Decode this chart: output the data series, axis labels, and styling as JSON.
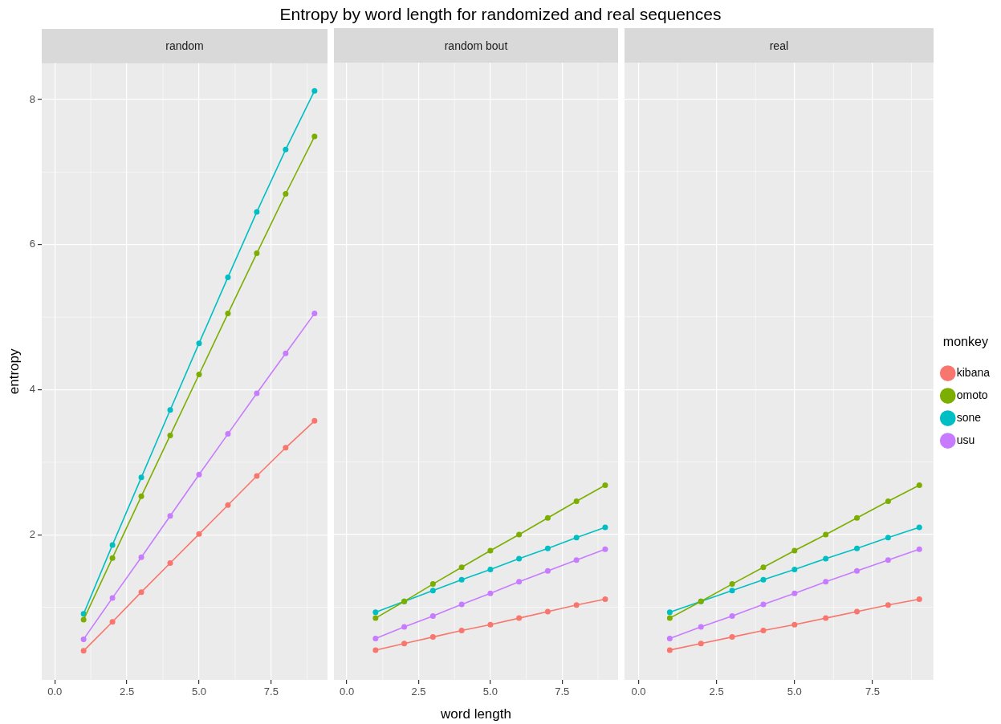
{
  "chart_data": [
    {
      "type": "line",
      "title": "random",
      "annotations": [
        "Entropy by word length for randomized and real sequences"
      ],
      "ylabel": "entropy",
      "x": [
        1,
        2,
        3,
        4,
        5,
        6,
        7,
        8,
        9
      ],
      "series": [
        {
          "color": "#f8766d",
          "values": [
            0.4,
            0.8,
            1.21,
            1.61,
            2.01,
            2.41,
            2.81,
            3.2,
            3.57
          ]
        },
        {
          "color": "#7cae00",
          "values": [
            0.83,
            1.68,
            2.53,
            3.37,
            4.21,
            5.05,
            5.88,
            6.7,
            7.49
          ]
        },
        {
          "color": "#00bfc4",
          "values": [
            0.91,
            1.86,
            2.79,
            3.72,
            4.64,
            5.55,
            6.45,
            7.31,
            8.12
          ]
        },
        {
          "color": "#c77cff",
          "values": [
            0.56,
            1.13,
            1.69,
            2.26,
            2.83,
            3.39,
            3.95,
            4.5,
            5.05
          ]
        }
      ],
      "xlim": [
        -0.45,
        9.45
      ],
      "ylim": [
        0,
        8.5
      ],
      "xticks": [
        {
          "value": 0,
          "label": "0.0"
        },
        {
          "value": 2.5,
          "label": "2.5"
        },
        {
          "value": 5,
          "label": "5.0"
        },
        {
          "value": 7.5,
          "label": "7.5"
        }
      ],
      "yticks": [
        2,
        4,
        6,
        8
      ],
      "grid": true,
      "marker": "circle",
      "line_style": "solid"
    },
    {
      "type": "line",
      "title": "random bout",
      "xlabel": "word length",
      "x": [
        1,
        2,
        3,
        4,
        5,
        6,
        7,
        8,
        9
      ],
      "series": [
        {
          "color": "#f8766d",
          "values": [
            0.41,
            0.5,
            0.59,
            0.68,
            0.76,
            0.85,
            0.94,
            1.03,
            1.11
          ]
        },
        {
          "color": "#7cae00",
          "values": [
            0.85,
            1.08,
            1.32,
            1.55,
            1.78,
            2.0,
            2.23,
            2.46,
            2.68
          ]
        },
        {
          "color": "#00bfc4",
          "values": [
            0.93,
            1.08,
            1.23,
            1.38,
            1.52,
            1.67,
            1.81,
            1.96,
            2.1
          ]
        },
        {
          "color": "#c77cff",
          "values": [
            0.57,
            0.73,
            0.88,
            1.04,
            1.19,
            1.35,
            1.5,
            1.65,
            1.8
          ]
        }
      ],
      "xlim": [
        -0.45,
        9.45
      ],
      "ylim": [
        0,
        8.5
      ],
      "xticks": [
        {
          "value": 0,
          "label": "0.0"
        },
        {
          "value": 2.5,
          "label": "2.5"
        },
        {
          "value": 5,
          "label": "5.0"
        },
        {
          "value": 7.5,
          "label": "7.5"
        }
      ],
      "yticks": [
        2,
        4,
        6,
        8
      ],
      "tick_labels": "x",
      "grid": true,
      "marker": "circle",
      "line_style": "solid"
    },
    {
      "type": "line",
      "title": "real",
      "legend": "right",
      "legend_title": "monkey",
      "x": [
        1,
        2,
        3,
        4,
        5,
        6,
        7,
        8,
        9
      ],
      "series": [
        {
          "name": "kibana",
          "color": "#f8766d",
          "values": [
            0.41,
            0.5,
            0.59,
            0.68,
            0.76,
            0.85,
            0.94,
            1.03,
            1.11
          ]
        },
        {
          "name": "omoto",
          "color": "#7cae00",
          "values": [
            0.85,
            1.08,
            1.32,
            1.55,
            1.78,
            2.0,
            2.23,
            2.46,
            2.68
          ]
        },
        {
          "name": "sone",
          "color": "#00bfc4",
          "values": [
            0.93,
            1.08,
            1.23,
            1.38,
            1.52,
            1.67,
            1.81,
            1.96,
            2.1
          ]
        },
        {
          "name": "usu",
          "color": "#c77cff",
          "values": [
            0.57,
            0.73,
            0.88,
            1.04,
            1.19,
            1.35,
            1.5,
            1.65,
            1.8
          ]
        }
      ],
      "xlim": [
        -0.45,
        9.45
      ],
      "ylim": [
        0,
        8.5
      ],
      "xticks": [
        {
          "value": 0,
          "label": "0.0"
        },
        {
          "value": 2.5,
          "label": "2.5"
        },
        {
          "value": 5,
          "label": "5.0"
        },
        {
          "value": 7.5,
          "label": "7.5"
        }
      ],
      "yticks": [
        2,
        4,
        6,
        8
      ],
      "tick_labels": "x",
      "grid": true,
      "marker": "circle",
      "line_style": "solid"
    }
  ]
}
